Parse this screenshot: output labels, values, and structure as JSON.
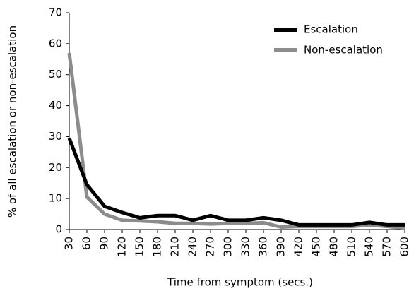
{
  "chart_data": {
    "type": "line",
    "x_label": "Time from symptom (secs.)",
    "y_label": "% of all escalation or non-escalation",
    "categories": [
      "30",
      "60",
      "90",
      "120",
      "150",
      "180",
      "210",
      "240",
      "270",
      "300",
      "330",
      "360",
      "390",
      "420",
      "450",
      "480",
      "510",
      "540",
      "570",
      "600"
    ],
    "series": [
      {
        "name": "Escalation",
        "color": "#000000",
        "values": [
          29.5,
          14.5,
          7.5,
          5.5,
          3.8,
          4.5,
          4.5,
          3,
          4.5,
          3,
          3,
          3.8,
          3,
          1.5,
          1.5,
          1.5,
          1.5,
          2.3,
          1.5,
          1.5
        ]
      },
      {
        "name": "Non-escalation",
        "color": "#8c8c8c",
        "values": [
          57,
          10.5,
          5,
          3,
          2.8,
          2.5,
          2,
          2,
          1.8,
          2,
          2,
          2.2,
          0.8,
          1,
          1,
          1,
          1,
          1.5,
          1,
          0.5
        ]
      }
    ],
    "ylim": [
      0,
      70
    ],
    "yticks": [
      0,
      10,
      20,
      30,
      40,
      50,
      60,
      70
    ],
    "grid": false,
    "legend": "top-right"
  }
}
